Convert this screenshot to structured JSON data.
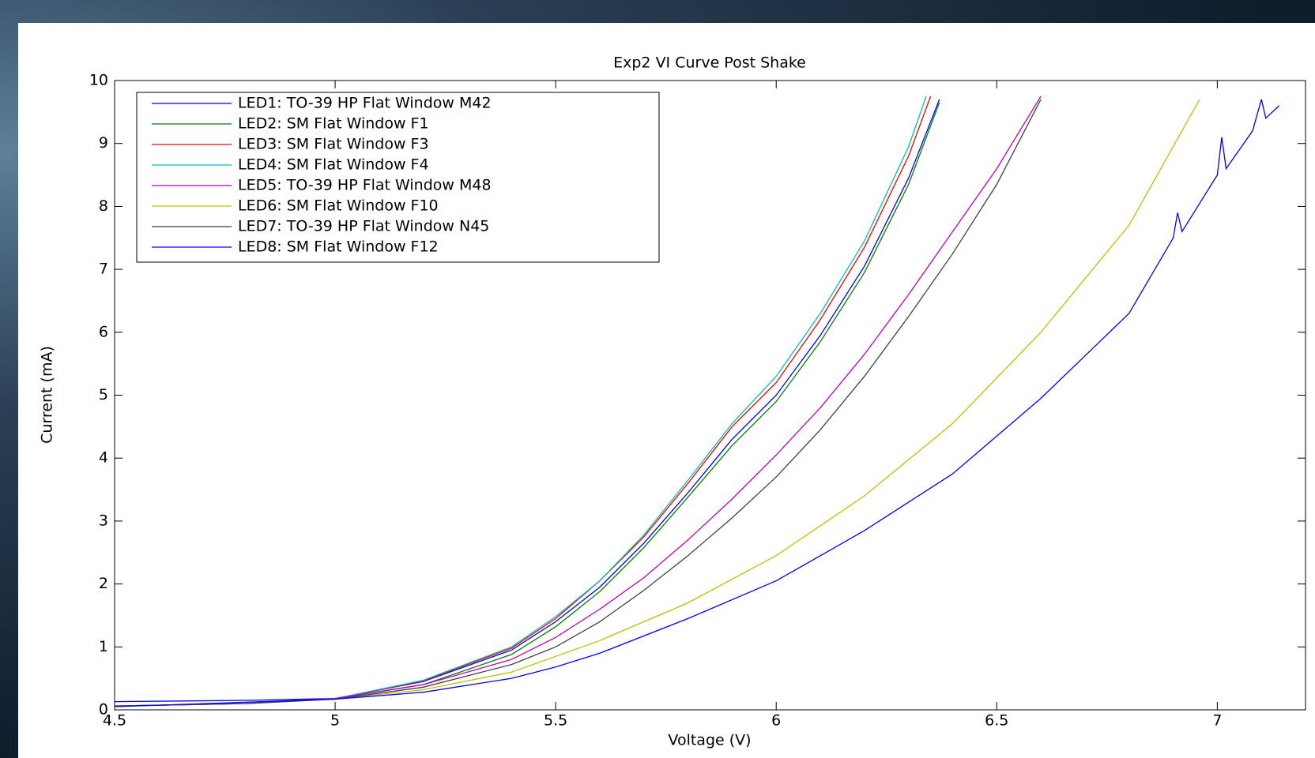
{
  "chart_data": {
    "type": "line",
    "title": "Exp2 VI Curve Post Shake",
    "x_label": "Voltage (V)",
    "y_label": "Current (mA)",
    "xlim": [
      4.5,
      7.2
    ],
    "ylim": [
      0,
      10
    ],
    "xticks": [
      4.5,
      5,
      5.5,
      6,
      6.5,
      7
    ],
    "yticks": [
      0,
      1,
      2,
      3,
      4,
      5,
      6,
      7,
      8,
      9,
      10
    ],
    "legend": "upper-left",
    "series": [
      {
        "name": "LED1: TO-39 HP Flat Window M42",
        "color": "#0000ff",
        "x": [
          4.5,
          4.8,
          5.0,
          5.2,
          5.4,
          5.5,
          5.6,
          5.7,
          5.8,
          5.9,
          6.0,
          6.1,
          6.2,
          6.3,
          6.37
        ],
        "values": [
          0.13,
          0.15,
          0.18,
          0.45,
          0.95,
          1.4,
          1.95,
          2.65,
          3.45,
          4.3,
          5.0,
          5.95,
          7.05,
          8.45,
          9.7
        ]
      },
      {
        "name": "LED2: SM Flat Window F1",
        "color": "#008000",
        "x": [
          4.5,
          4.8,
          5.0,
          5.2,
          5.4,
          5.5,
          5.6,
          5.7,
          5.8,
          5.9,
          6.0,
          6.1,
          6.2,
          6.3,
          6.37
        ],
        "values": [
          0.06,
          0.1,
          0.18,
          0.4,
          0.88,
          1.32,
          1.88,
          2.58,
          3.38,
          4.2,
          4.9,
          5.85,
          6.95,
          8.35,
          9.65
        ]
      },
      {
        "name": "LED3: SM Flat Window F3",
        "color": "#ff0000",
        "x": [
          4.5,
          4.8,
          5.0,
          5.2,
          5.4,
          5.5,
          5.6,
          5.7,
          5.8,
          5.9,
          6.0,
          6.1,
          6.2,
          6.3,
          6.35
        ],
        "values": [
          0.06,
          0.1,
          0.18,
          0.46,
          0.98,
          1.45,
          2.05,
          2.75,
          3.6,
          4.5,
          5.2,
          6.2,
          7.35,
          8.8,
          9.75
        ]
      },
      {
        "name": "LED4: SM Flat Window F4",
        "color": "#00bfbf",
        "x": [
          4.5,
          4.8,
          5.0,
          5.2,
          5.4,
          5.5,
          5.6,
          5.7,
          5.8,
          5.9,
          6.0,
          6.1,
          6.2,
          6.3,
          6.34
        ],
        "values": [
          0.06,
          0.1,
          0.18,
          0.47,
          1.0,
          1.48,
          2.05,
          2.78,
          3.65,
          4.55,
          5.3,
          6.3,
          7.45,
          8.95,
          9.75
        ]
      },
      {
        "name": "LED5: TO-39 HP Flat Window M48",
        "color": "#bf00bf",
        "x": [
          4.5,
          4.8,
          5.0,
          5.2,
          5.4,
          5.5,
          5.6,
          5.7,
          5.8,
          5.9,
          6.0,
          6.1,
          6.2,
          6.3,
          6.4,
          6.5,
          6.6
        ],
        "values": [
          0.06,
          0.1,
          0.18,
          0.4,
          0.8,
          1.15,
          1.6,
          2.1,
          2.7,
          3.35,
          4.05,
          4.8,
          5.65,
          6.6,
          7.6,
          8.6,
          9.75
        ]
      },
      {
        "name": "LED6: SM Flat Window F10",
        "color": "#bfbf00",
        "x": [
          4.5,
          4.8,
          5.0,
          5.2,
          5.4,
          5.5,
          5.6,
          5.8,
          6.0,
          6.2,
          6.4,
          6.6,
          6.8,
          6.96
        ],
        "values": [
          0.06,
          0.1,
          0.17,
          0.32,
          0.6,
          0.85,
          1.1,
          1.7,
          2.45,
          3.4,
          4.55,
          6.0,
          7.7,
          9.7
        ]
      },
      {
        "name": "LED7: TO-39 HP Flat Window N45",
        "color": "#404040",
        "x": [
          4.5,
          4.8,
          5.0,
          5.2,
          5.4,
          5.5,
          5.6,
          5.7,
          5.8,
          5.9,
          6.0,
          6.1,
          6.2,
          6.3,
          6.4,
          6.5,
          6.6
        ],
        "values": [
          0.06,
          0.1,
          0.17,
          0.36,
          0.72,
          1.0,
          1.4,
          1.9,
          2.45,
          3.05,
          3.7,
          4.45,
          5.3,
          6.25,
          7.25,
          8.35,
          9.7
        ]
      },
      {
        "name": "LED8: SM Flat Window F12",
        "color": "#0000ff",
        "x": [
          4.5,
          5.0,
          5.2,
          5.4,
          5.5,
          5.6,
          5.8,
          6.0,
          6.2,
          6.4,
          6.6,
          6.8,
          6.9,
          6.91,
          6.92,
          7.0,
          7.01,
          7.02,
          7.08,
          7.1,
          7.11,
          7.14
        ],
        "values": [
          0.05,
          0.17,
          0.28,
          0.5,
          0.68,
          0.9,
          1.45,
          2.05,
          2.85,
          3.75,
          4.95,
          6.3,
          7.5,
          7.9,
          7.6,
          8.5,
          9.1,
          8.6,
          9.2,
          9.7,
          9.4,
          9.6
        ]
      }
    ]
  }
}
